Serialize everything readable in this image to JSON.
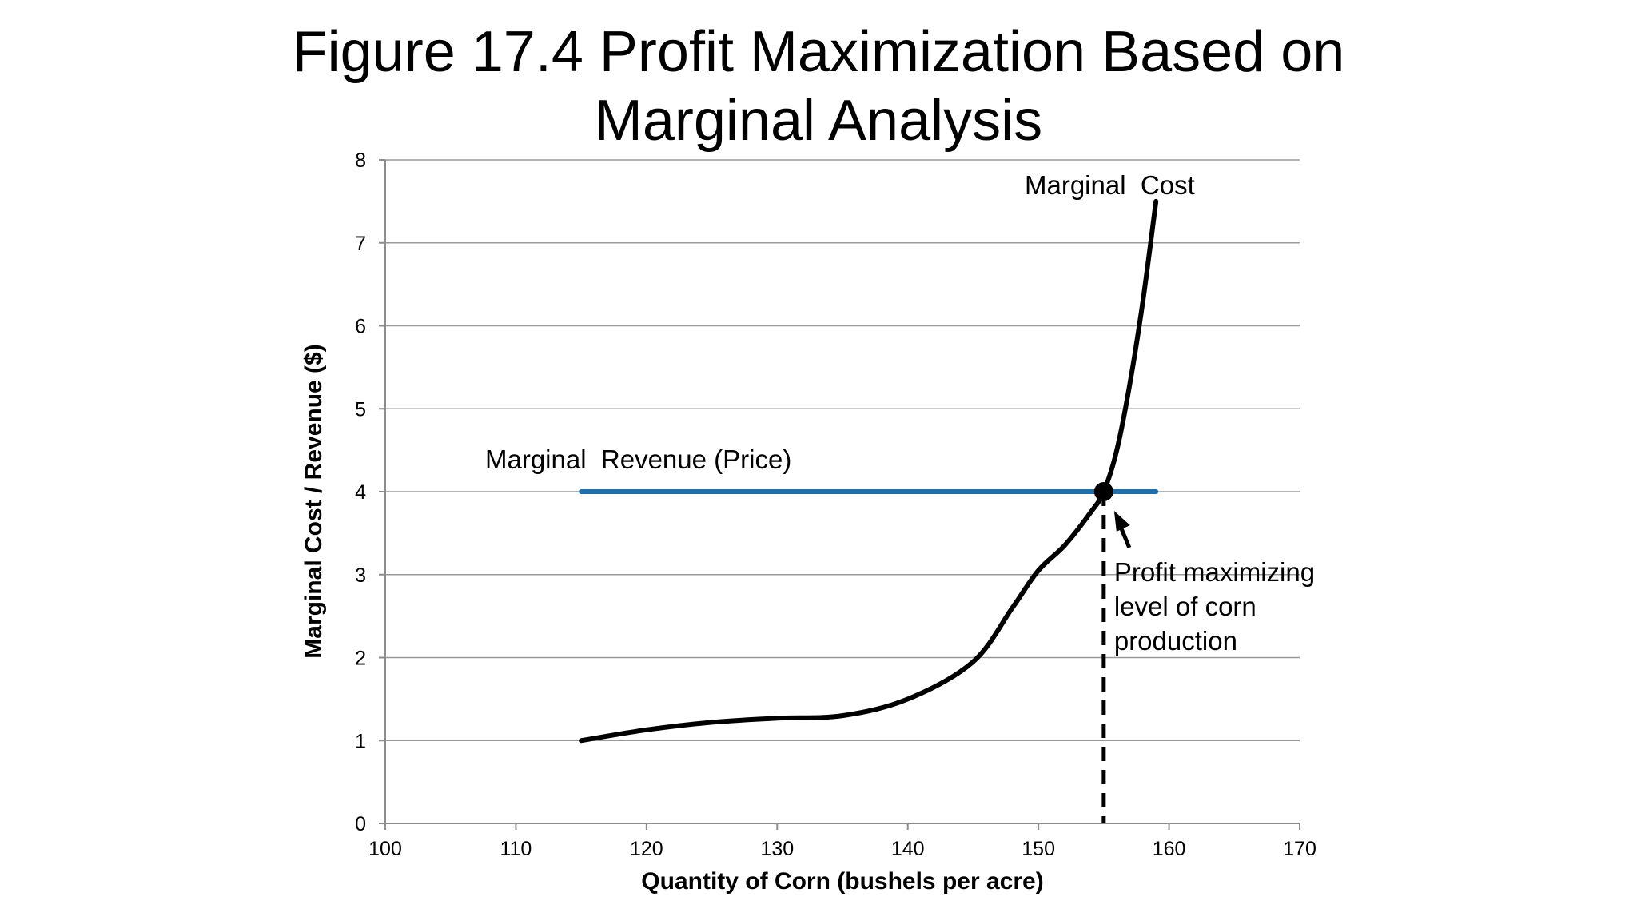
{
  "slide": {
    "title": "Figure 17.4 Profit Maximization Based on Marginal Analysis"
  },
  "chart_data": {
    "type": "line",
    "title": "Figure 17.4 Profit Maximization Based on Marginal Analysis",
    "xlabel": "Quantity of Corn (bushels per acre)",
    "ylabel": "Marginal Cost / Revenue ($)",
    "xlim": [
      100,
      170
    ],
    "ylim": [
      0,
      8
    ],
    "x_ticks": [
      100,
      110,
      120,
      130,
      140,
      150,
      160,
      170
    ],
    "y_ticks": [
      0,
      1,
      2,
      3,
      4,
      5,
      6,
      7,
      8
    ],
    "grid": "horizontal",
    "series": [
      {
        "name": "Marginal Revenue (Price)",
        "label": "Marginal  Revenue (Price)",
        "color": "#1f6fa8",
        "x": [
          115,
          159
        ],
        "y": [
          4,
          4
        ]
      },
      {
        "name": "Marginal Cost",
        "label": "Marginal  Cost",
        "color": "#000000",
        "x": [
          115,
          120,
          125,
          130,
          135,
          140,
          145,
          148,
          150,
          152,
          154,
          155,
          156,
          157,
          158,
          159
        ],
        "y": [
          1.0,
          1.13,
          1.22,
          1.27,
          1.3,
          1.5,
          1.95,
          2.6,
          3.05,
          3.35,
          3.75,
          4.0,
          4.5,
          5.3,
          6.3,
          7.5
        ]
      }
    ],
    "intersection": {
      "x": 155,
      "y": 4
    },
    "annotation": {
      "lines": [
        "Profit maximizing",
        "level of corn",
        "production"
      ]
    }
  }
}
